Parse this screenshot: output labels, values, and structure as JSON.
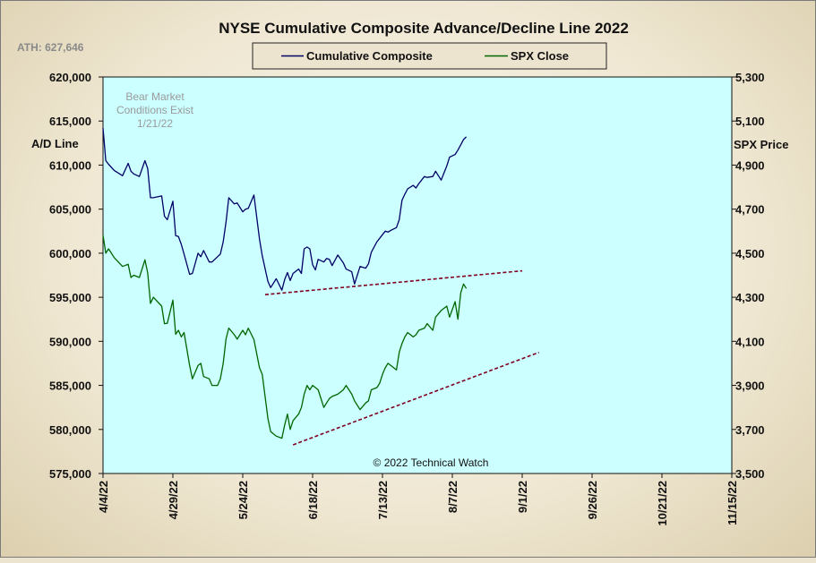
{
  "chart_data": {
    "type": "line",
    "title": "NYSE Cumulative  Composite  Advance/Decline  Line  2022",
    "ath_label": "ATH:  627,646",
    "annotation": [
      "Bear Market",
      "Conditions  Exist",
      "1/21/22"
    ],
    "copyright": "© 2022 Technical  Watch",
    "ylabel_left": "A/D Line",
    "ylabel_right": "SPX Price",
    "y_left_ticks": [
      "620,000",
      "615,000",
      "610,000",
      "605,000",
      "600,000",
      "595,000",
      "590,000",
      "585,000",
      "580,000",
      "575,000"
    ],
    "y_right_ticks": [
      "5,300",
      "5,100",
      "4,900",
      "4,700",
      "4,500",
      "4,300",
      "4,100",
      "3,900",
      "3,700",
      "3,500"
    ],
    "y_left_range": [
      575000,
      620000
    ],
    "y_right_range": [
      3500,
      5300
    ],
    "x_ticks": [
      "4/4/22",
      "4/29/22",
      "5/24/22",
      "6/18/22",
      "7/13/22",
      "8/7/22",
      "9/1/22",
      "9/26/22",
      "10/21/22",
      "11/15/22"
    ],
    "x_range": [
      "2022-04-04",
      "2022-11-15"
    ],
    "legend": [
      "Cumulative Composite",
      "SPX Close"
    ],
    "colors": {
      "ad_line": "#000066",
      "spx": "#006600",
      "trend": "#800020",
      "plot_bg": "#ccffff"
    },
    "series": [
      {
        "name": "Cumulative Composite",
        "axis": "left",
        "x": [
          "2022-04-04",
          "2022-04-05",
          "2022-04-06",
          "2022-04-08",
          "2022-04-11",
          "2022-04-13",
          "2022-04-14",
          "2022-04-15",
          "2022-04-17",
          "2022-04-19",
          "2022-04-20",
          "2022-04-21",
          "2022-04-22",
          "2022-04-25",
          "2022-04-26",
          "2022-04-27",
          "2022-04-29",
          "2022-04-30",
          "2022-05-01",
          "2022-05-02",
          "2022-05-03",
          "2022-05-05",
          "2022-05-06",
          "2022-05-08",
          "2022-05-09",
          "2022-05-10",
          "2022-05-12",
          "2022-05-13",
          "2022-05-15",
          "2022-05-16",
          "2022-05-17",
          "2022-05-18",
          "2022-05-19",
          "2022-05-21",
          "2022-05-22",
          "2022-05-24",
          "2022-05-25",
          "2022-05-26",
          "2022-05-28",
          "2022-05-30",
          "2022-05-31",
          "2022-06-02",
          "2022-06-03",
          "2022-06-05",
          "2022-06-07",
          "2022-06-08",
          "2022-06-09",
          "2022-06-10",
          "2022-06-11",
          "2022-06-13",
          "2022-06-14",
          "2022-06-15",
          "2022-06-16",
          "2022-06-17",
          "2022-06-18",
          "2022-06-19",
          "2022-06-20",
          "2022-06-22",
          "2022-06-23",
          "2022-06-24",
          "2022-06-25",
          "2022-06-27",
          "2022-06-29",
          "2022-06-30",
          "2022-07-02",
          "2022-07-03",
          "2022-07-05",
          "2022-07-07",
          "2022-07-08",
          "2022-07-09",
          "2022-07-11",
          "2022-07-12",
          "2022-07-13",
          "2022-07-14",
          "2022-07-15",
          "2022-07-16",
          "2022-07-18",
          "2022-07-19",
          "2022-07-20",
          "2022-07-21",
          "2022-07-22",
          "2022-07-24",
          "2022-07-25",
          "2022-07-26",
          "2022-07-28",
          "2022-07-29",
          "2022-07-31",
          "2022-08-01",
          "2022-08-03",
          "2022-08-05",
          "2022-08-06",
          "2022-08-08",
          "2022-08-09",
          "2022-08-10",
          "2022-08-11",
          "2022-08-12"
        ],
        "values": [
          614200,
          610500,
          610100,
          609400,
          608800,
          610200,
          609300,
          609000,
          608700,
          610500,
          609600,
          606300,
          606300,
          606500,
          604200,
          603800,
          605900,
          602000,
          601900,
          601000,
          599900,
          597600,
          597700,
          600000,
          599600,
          600300,
          599000,
          599000,
          599600,
          599900,
          601300,
          603500,
          606300,
          605600,
          605700,
          604700,
          605000,
          605100,
          606600,
          601600,
          599700,
          596800,
          596100,
          597100,
          595800,
          597000,
          597800,
          596900,
          597700,
          598200,
          597700,
          600500,
          600700,
          600500,
          598700,
          598100,
          599300,
          599000,
          599400,
          599300,
          598600,
          599800,
          598900,
          598200,
          597900,
          596500,
          598500,
          598300,
          598800,
          600100,
          601300,
          601700,
          602100,
          602500,
          602400,
          602600,
          602900,
          603800,
          606000,
          606700,
          607300,
          607700,
          607400,
          607900,
          608700,
          608600,
          608700,
          609300,
          608300,
          609900,
          610900,
          611200,
          611700,
          612300,
          612900,
          613200
        ]
      },
      {
        "name": "SPX Close",
        "axis": "right",
        "x": [
          "2022-04-04",
          "2022-04-05",
          "2022-04-06",
          "2022-04-08",
          "2022-04-11",
          "2022-04-13",
          "2022-04-14",
          "2022-04-15",
          "2022-04-17",
          "2022-04-19",
          "2022-04-20",
          "2022-04-21",
          "2022-04-22",
          "2022-04-25",
          "2022-04-26",
          "2022-04-27",
          "2022-04-29",
          "2022-04-30",
          "2022-05-01",
          "2022-05-02",
          "2022-05-03",
          "2022-05-05",
          "2022-05-06",
          "2022-05-08",
          "2022-05-09",
          "2022-05-10",
          "2022-05-12",
          "2022-05-13",
          "2022-05-15",
          "2022-05-16",
          "2022-05-17",
          "2022-05-18",
          "2022-05-19",
          "2022-05-21",
          "2022-05-22",
          "2022-05-24",
          "2022-05-25",
          "2022-05-26",
          "2022-05-28",
          "2022-05-30",
          "2022-05-31",
          "2022-06-02",
          "2022-06-03",
          "2022-06-05",
          "2022-06-07",
          "2022-06-08",
          "2022-06-09",
          "2022-06-10",
          "2022-06-11",
          "2022-06-13",
          "2022-06-14",
          "2022-06-15",
          "2022-06-16",
          "2022-06-17",
          "2022-06-18",
          "2022-06-19",
          "2022-06-20",
          "2022-06-22",
          "2022-06-23",
          "2022-06-24",
          "2022-06-25",
          "2022-06-27",
          "2022-06-29",
          "2022-06-30",
          "2022-07-02",
          "2022-07-03",
          "2022-07-05",
          "2022-07-07",
          "2022-07-08",
          "2022-07-09",
          "2022-07-11",
          "2022-07-12",
          "2022-07-13",
          "2022-07-14",
          "2022-07-15",
          "2022-07-16",
          "2022-07-18",
          "2022-07-19",
          "2022-07-20",
          "2022-07-21",
          "2022-07-22",
          "2022-07-24",
          "2022-07-25",
          "2022-07-26",
          "2022-07-28",
          "2022-07-29",
          "2022-07-31",
          "2022-08-01",
          "2022-08-03",
          "2022-08-05",
          "2022-08-06",
          "2022-08-08",
          "2022-08-09",
          "2022-08-10",
          "2022-08-11",
          "2022-08-12"
        ],
        "values": [
          4582,
          4500,
          4520,
          4480,
          4440,
          4450,
          4390,
          4400,
          4390,
          4470,
          4410,
          4272,
          4300,
          4260,
          4180,
          4182,
          4287,
          4132,
          4150,
          4120,
          4140,
          3990,
          3930,
          3990,
          4000,
          3940,
          3930,
          3900,
          3900,
          3930,
          4000,
          4110,
          4160,
          4130,
          4110,
          4150,
          4130,
          4160,
          4108,
          3980,
          3950,
          3750,
          3690,
          3670,
          3660,
          3720,
          3770,
          3700,
          3740,
          3770,
          3800,
          3860,
          3900,
          3880,
          3900,
          3890,
          3880,
          3800,
          3820,
          3840,
          3850,
          3860,
          3880,
          3900,
          3860,
          3830,
          3790,
          3820,
          3830,
          3880,
          3890,
          3910,
          3950,
          3980,
          4000,
          3990,
          3970,
          4050,
          4090,
          4120,
          4140,
          4120,
          4130,
          4150,
          4160,
          4180,
          4150,
          4210,
          4240,
          4260,
          4210,
          4280,
          4200,
          4320,
          4360,
          4340
        ]
      }
    ],
    "trendlines": [
      {
        "axis": "left",
        "x": [
          "2022-06-01",
          "2022-09-01"
        ],
        "y": [
          595300,
          598000
        ]
      },
      {
        "axis": "right",
        "x": [
          "2022-06-11",
          "2022-09-07"
        ],
        "y": [
          3630,
          4050
        ]
      }
    ]
  }
}
